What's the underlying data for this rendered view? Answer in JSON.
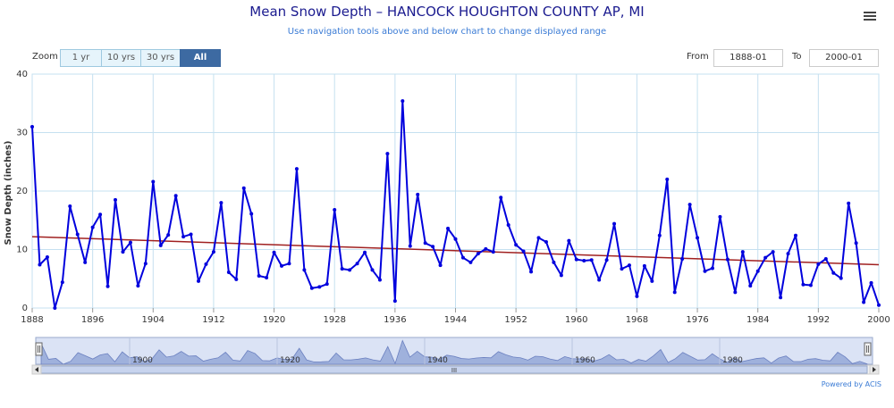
{
  "header": {
    "title": "Mean Snow Depth – HANCOCK HOUGHTON COUNTY AP, MI",
    "subtitle": "Use navigation tools above and below chart to change displayed range",
    "menu_icon": "hamburger-menu-icon"
  },
  "zoom": {
    "label": "Zoom",
    "buttons": [
      "1 yr",
      "10 yrs",
      "30 yrs",
      "All"
    ],
    "active": "All"
  },
  "range": {
    "from_label": "From",
    "from_value": "1888-01",
    "to_label": "To",
    "to_value": "2000-01"
  },
  "navigator": {
    "tick_labels": [
      "1900",
      "1920",
      "1940",
      "1960",
      "1980"
    ],
    "scroll_grip": "III"
  },
  "footer": {
    "credit": "Powered by ACIS"
  },
  "chart_data": {
    "type": "line",
    "title": "Mean Snow Depth – HANCOCK HOUGHTON COUNTY AP, MI",
    "ylabel": "Snow Depth (inches)",
    "xlabel": "",
    "xlim": [
      1888,
      2000
    ],
    "ylim": [
      0,
      40
    ],
    "yticks": [
      0,
      10,
      20,
      30,
      40
    ],
    "xticks": [
      1888,
      1896,
      1904,
      1912,
      1920,
      1928,
      1936,
      1944,
      1952,
      1960,
      1968,
      1976,
      1984,
      1992,
      2000
    ],
    "grid": true,
    "colors": {
      "series": "#0000dd",
      "trend": "#a02020",
      "grid": "#c5e0f0",
      "navigator": "#9fb1dc"
    },
    "series": [
      {
        "values": [
          [
            1888,
            31.0
          ],
          [
            1889,
            7.4
          ],
          [
            1890,
            8.7
          ],
          [
            1891,
            0
          ],
          [
            1892,
            4.4
          ],
          [
            1893,
            17.4
          ],
          [
            1894,
            12.6
          ],
          [
            1895,
            7.8
          ],
          [
            1896,
            13.8
          ],
          [
            1897,
            16.0
          ],
          [
            1898,
            3.7
          ],
          [
            1899,
            18.5
          ],
          [
            1900,
            9.6
          ],
          [
            1901,
            11.2
          ],
          [
            1902,
            3.8
          ],
          [
            1903,
            7.6
          ],
          [
            1904,
            21.6
          ],
          [
            1905,
            10.7
          ],
          [
            1906,
            12.5
          ],
          [
            1907,
            19.2
          ],
          [
            1908,
            12.2
          ],
          [
            1909,
            12.6
          ],
          [
            1910,
            4.6
          ],
          [
            1911,
            7.5
          ],
          [
            1912,
            9.6
          ],
          [
            1913,
            18.0
          ],
          [
            1914,
            6.1
          ],
          [
            1915,
            4.9
          ],
          [
            1916,
            20.5
          ],
          [
            1917,
            16.1
          ],
          [
            1918,
            5.5
          ],
          [
            1919,
            5.2
          ],
          [
            1920,
            9.5
          ],
          [
            1921,
            7.2
          ],
          [
            1922,
            7.6
          ],
          [
            1923,
            23.8
          ],
          [
            1924,
            6.5
          ],
          [
            1925,
            3.4
          ],
          [
            1926,
            3.6
          ],
          [
            1927,
            4.1
          ],
          [
            1928,
            16.8
          ],
          [
            1929,
            6.7
          ],
          [
            1930,
            6.5
          ],
          [
            1931,
            7.6
          ],
          [
            1932,
            9.5
          ],
          [
            1933,
            6.5
          ],
          [
            1934,
            4.8
          ],
          [
            1935,
            26.4
          ],
          [
            1936,
            1.2
          ],
          [
            1937,
            35.4
          ],
          [
            1938,
            10.6
          ],
          [
            1939,
            19.4
          ],
          [
            1940,
            11.1
          ],
          [
            1941,
            10.5
          ],
          [
            1942,
            7.3
          ],
          [
            1943,
            13.6
          ],
          [
            1944,
            11.8
          ],
          [
            1945,
            8.6
          ],
          [
            1946,
            7.8
          ],
          [
            1947,
            9.3
          ],
          [
            1948,
            10.1
          ],
          [
            1949,
            9.6
          ],
          [
            1950,
            18.9
          ],
          [
            1951,
            14.2
          ],
          [
            1952,
            10.8
          ],
          [
            1953,
            9.7
          ],
          [
            1954,
            6.2
          ],
          [
            1955,
            12.0
          ],
          [
            1956,
            11.3
          ],
          [
            1957,
            7.8
          ],
          [
            1958,
            5.6
          ],
          [
            1959,
            11.5
          ],
          [
            1960,
            8.3
          ],
          [
            1961,
            8.1
          ],
          [
            1962,
            8.2
          ],
          [
            1963,
            4.8
          ],
          [
            1964,
            8.2
          ],
          [
            1965,
            14.4
          ],
          [
            1966,
            6.7
          ],
          [
            1967,
            7.3
          ],
          [
            1968,
            2.0
          ],
          [
            1969,
            7.2
          ],
          [
            1970,
            4.6
          ],
          [
            1971,
            12.4
          ],
          [
            1972,
            22.0
          ],
          [
            1973,
            2.7
          ],
          [
            1974,
            8.4
          ],
          [
            1975,
            17.7
          ],
          [
            1976,
            12.0
          ],
          [
            1977,
            6.3
          ],
          [
            1978,
            6.8
          ],
          [
            1979,
            15.6
          ],
          [
            1980,
            8.3
          ],
          [
            1981,
            2.7
          ],
          [
            1982,
            9.6
          ],
          [
            1983,
            3.8
          ],
          [
            1984,
            6.3
          ],
          [
            1985,
            8.6
          ],
          [
            1986,
            9.6
          ],
          [
            1987,
            1.8
          ],
          [
            1988,
            9.3
          ],
          [
            1989,
            12.4
          ],
          [
            1990,
            4.0
          ],
          [
            1991,
            3.9
          ],
          [
            1992,
            7.5
          ],
          [
            1993,
            8.4
          ],
          [
            1994,
            6.0
          ],
          [
            1995,
            5.1
          ],
          [
            1996,
            17.9
          ],
          [
            1997,
            11.1
          ],
          [
            1998,
            1.0
          ],
          [
            1999,
            4.3
          ],
          [
            2000,
            0.5
          ]
        ]
      },
      {
        "values": [
          [
            1888,
            12.2
          ],
          [
            2000,
            7.4
          ]
        ]
      }
    ]
  }
}
